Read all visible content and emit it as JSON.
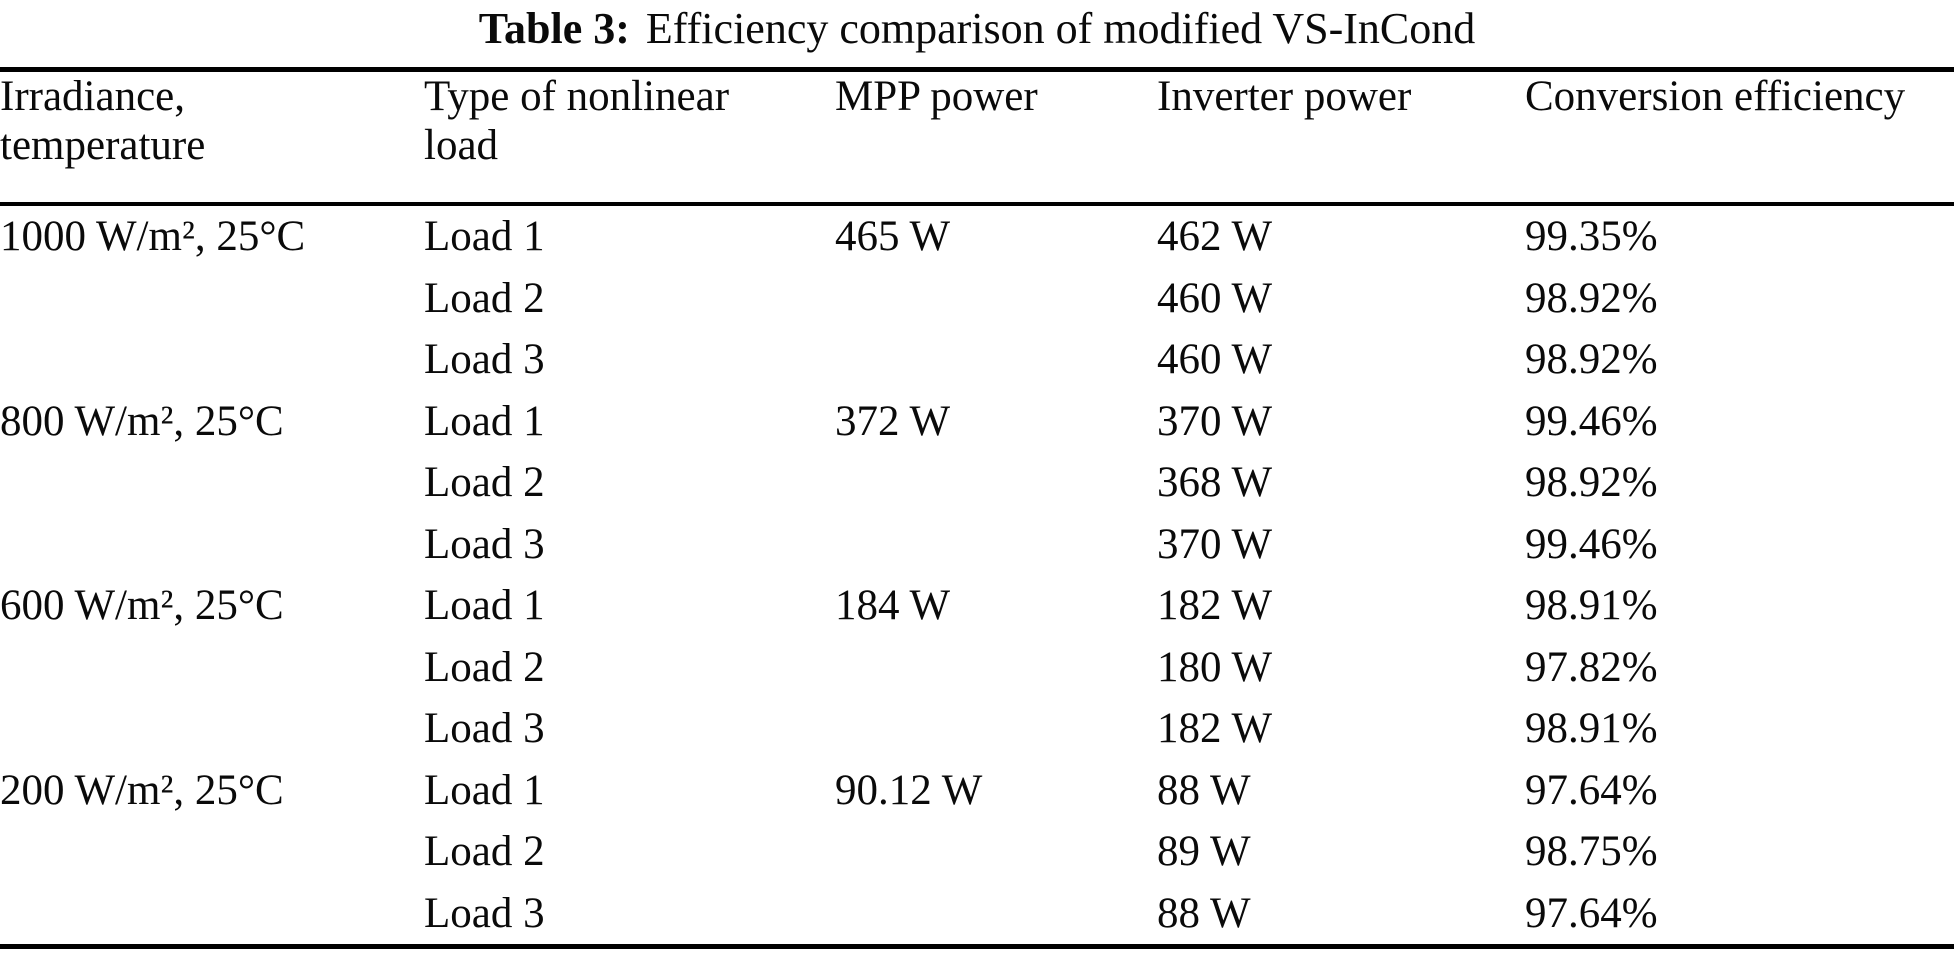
{
  "title": {
    "label": "Table 3:",
    "text": "Efficiency comparison of modified VS-InCond"
  },
  "table": {
    "headers": [
      "Irradiance,\ntemperature",
      "Type of nonlinear\nload",
      "MPP power",
      "Inverter power",
      "Conversion efficiency"
    ],
    "rows": [
      {
        "irradiance": "1000 W/m², 25°C",
        "load": "Load 1",
        "mpp": "465 W",
        "inverter": "462 W",
        "efficiency": "99.35%"
      },
      {
        "irradiance": "",
        "load": "Load 2",
        "mpp": "",
        "inverter": "460 W",
        "efficiency": "98.92%"
      },
      {
        "irradiance": "",
        "load": "Load 3",
        "mpp": "",
        "inverter": "460 W",
        "efficiency": "98.92%"
      },
      {
        "irradiance": "800 W/m², 25°C",
        "load": "Load 1",
        "mpp": "372 W",
        "inverter": "370 W",
        "efficiency": "99.46%"
      },
      {
        "irradiance": "",
        "load": "Load 2",
        "mpp": "",
        "inverter": "368 W",
        "efficiency": "98.92%"
      },
      {
        "irradiance": "",
        "load": "Load 3",
        "mpp": "",
        "inverter": "370 W",
        "efficiency": "99.46%"
      },
      {
        "irradiance": "600 W/m², 25°C",
        "load": "Load 1",
        "mpp": "184 W",
        "inverter": "182 W",
        "efficiency": "98.91%"
      },
      {
        "irradiance": "",
        "load": "Load 2",
        "mpp": "",
        "inverter": "180 W",
        "efficiency": "97.82%"
      },
      {
        "irradiance": "",
        "load": "Load 3",
        "mpp": "",
        "inverter": "182 W",
        "efficiency": "98.91%"
      },
      {
        "irradiance": "200 W/m², 25°C",
        "load": "Load 1",
        "mpp": "90.12 W",
        "inverter": "88 W",
        "efficiency": "97.64%"
      },
      {
        "irradiance": "",
        "load": "Load 2",
        "mpp": "",
        "inverter": "89 W",
        "efficiency": "98.75%"
      },
      {
        "irradiance": "",
        "load": "Load 3",
        "mpp": "",
        "inverter": "88 W",
        "efficiency": "97.64%"
      }
    ]
  },
  "chart_data": {
    "type": "table",
    "title": "Table 3: Efficiency comparison of modified VS-InCond",
    "columns": [
      "Irradiance, temperature",
      "Type of nonlinear load",
      "MPP power",
      "Inverter power",
      "Conversion efficiency"
    ],
    "rows": [
      [
        "1000 W/m², 25°C",
        "Load 1",
        "465 W",
        "462 W",
        "99.35%"
      ],
      [
        "",
        "Load 2",
        "",
        "460 W",
        "98.92%"
      ],
      [
        "",
        "Load 3",
        "",
        "460 W",
        "98.92%"
      ],
      [
        "800 W/m², 25°C",
        "Load 1",
        "372 W",
        "370 W",
        "99.46%"
      ],
      [
        "",
        "Load 2",
        "",
        "368 W",
        "98.92%"
      ],
      [
        "",
        "Load 3",
        "",
        "370 W",
        "99.46%"
      ],
      [
        "600 W/m², 25°C",
        "Load 1",
        "184 W",
        "182 W",
        "98.91%"
      ],
      [
        "",
        "Load 2",
        "",
        "180 W",
        "97.82%"
      ],
      [
        "",
        "Load 3",
        "",
        "182 W",
        "98.91%"
      ],
      [
        "200 W/m², 25°C",
        "Load 1",
        "90.12 W",
        "88 W",
        "97.64%"
      ],
      [
        "",
        "Load 2",
        "",
        "89 W",
        "98.75%"
      ],
      [
        "",
        "Load 3",
        "",
        "88 W",
        "97.64%"
      ]
    ]
  }
}
